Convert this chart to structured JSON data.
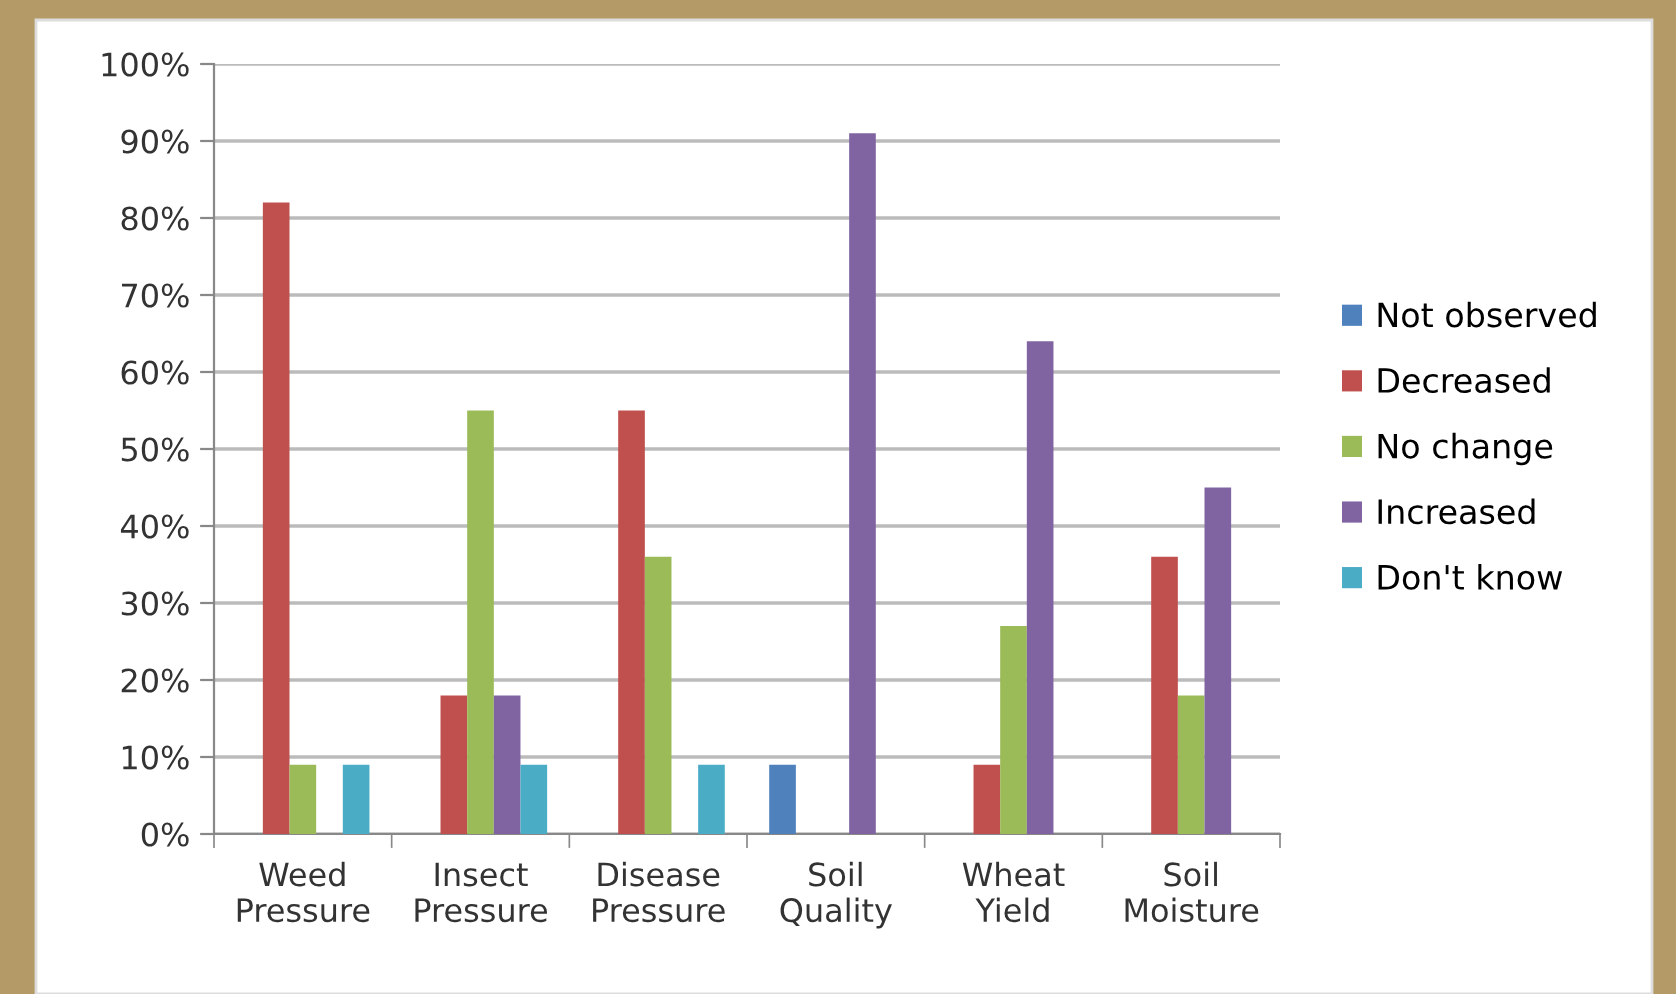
{
  "chart_data": {
    "type": "bar",
    "categories": [
      "Weed\nPressure",
      "Insect\nPressure",
      "Disease\nPressure",
      "Soil\nQuality",
      "Wheat\nYield",
      "Soil\nMoisture"
    ],
    "series": [
      {
        "name": "Not observed",
        "color": "#4f81bd",
        "values": [
          0,
          0,
          0,
          9,
          0,
          0
        ]
      },
      {
        "name": "Decreased",
        "color": "#c0504d",
        "values": [
          82,
          18,
          55,
          0,
          9,
          36
        ]
      },
      {
        "name": "No change",
        "color": "#9bbb59",
        "values": [
          9,
          55,
          36,
          0,
          27,
          18
        ]
      },
      {
        "name": "Increased",
        "color": "#8064a2",
        "values": [
          0,
          18,
          0,
          91,
          64,
          45
        ]
      },
      {
        "name": "Don't know",
        "color": "#4bacc6",
        "values": [
          9,
          9,
          9,
          0,
          0,
          0
        ]
      }
    ],
    "ylim": [
      0,
      100
    ],
    "yticks": [
      {
        "value": 0,
        "label": "0%"
      },
      {
        "value": 10,
        "label": "10%"
      },
      {
        "value": 20,
        "label": "20%"
      },
      {
        "value": 30,
        "label": "30%"
      },
      {
        "value": 40,
        "label": "40%"
      },
      {
        "value": 50,
        "label": "50%"
      },
      {
        "value": 60,
        "label": "60%"
      },
      {
        "value": 70,
        "label": "70%"
      },
      {
        "value": 80,
        "label": "80%"
      },
      {
        "value": 90,
        "label": "90%"
      },
      {
        "value": 100,
        "label": "100%"
      }
    ],
    "grid": "y",
    "legend": "right"
  }
}
